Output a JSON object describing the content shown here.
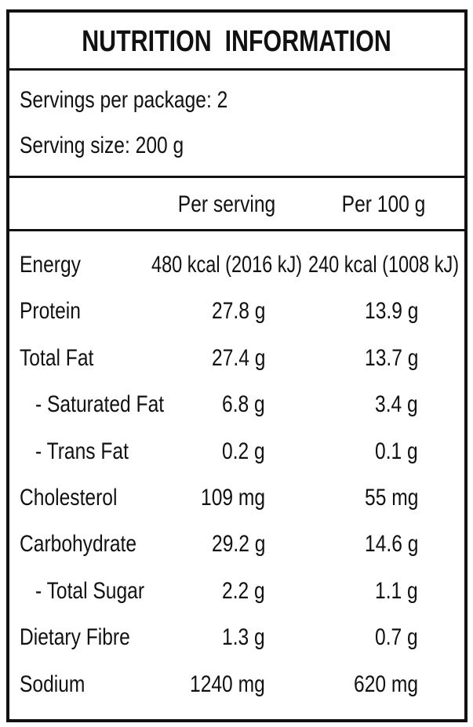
{
  "header": {
    "title": "NUTRITION  INFORMATION"
  },
  "servings": [
    "Servings per package: 2",
    "Serving size: 200 g"
  ],
  "columns": [
    "Per serving",
    "Per 100 g"
  ],
  "rows": [
    [
      "Energy",
      "480 kcal (2016 kJ)",
      "240 kcal (1008 kJ)"
    ],
    [
      "Protein",
      "27.8 g",
      "13.9 g"
    ],
    [
      "Total Fat",
      "27.4 g",
      "13.7 g"
    ],
    [
      "- Saturated Fat",
      "6.8 g",
      "3.4 g"
    ],
    [
      "- Trans Fat",
      "0.2 g",
      "0.1 g"
    ],
    [
      "Cholesterol",
      "109 mg",
      "55 mg"
    ],
    [
      "Carbohydrate",
      "29.2 g",
      "14.6 g"
    ],
    [
      "- Total Sugar",
      "2.2 g",
      "1.1 g"
    ],
    [
      "Dietary Fibre",
      "1.3 g",
      "0.7 g"
    ],
    [
      "Sodium",
      "1240 mg",
      "620 mg"
    ]
  ]
}
